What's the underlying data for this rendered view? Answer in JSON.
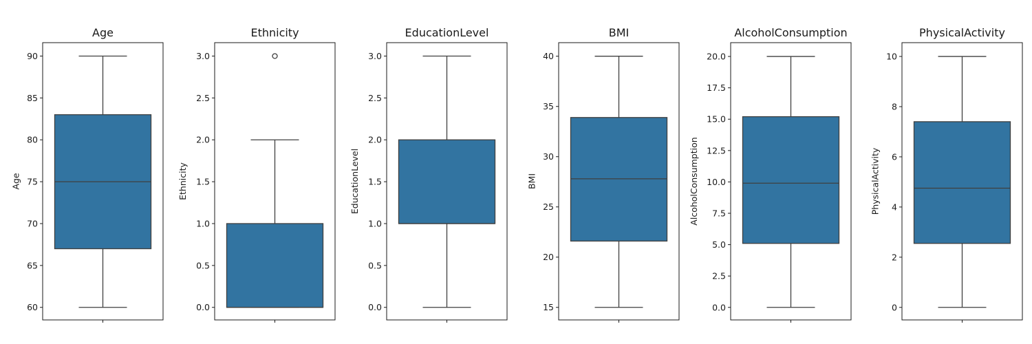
{
  "chart_data": [
    {
      "type": "box",
      "title": "Age",
      "ylabel": "Age",
      "ylim": [
        58.5,
        91.6
      ],
      "yticks": [
        60,
        65,
        70,
        75,
        80,
        85,
        90
      ],
      "ytick_labels": [
        "60",
        "65",
        "70",
        "75",
        "80",
        "85",
        "90"
      ],
      "stats": {
        "whisker_low": 60,
        "q1": 67,
        "median": 75,
        "q3": 83,
        "whisker_high": 90
      },
      "fliers": [],
      "color": "#3274a1"
    },
    {
      "type": "box",
      "title": "Ethnicity",
      "ylabel": "Ethnicity",
      "ylim": [
        -0.15,
        3.16
      ],
      "yticks": [
        0,
        0.5,
        1,
        1.5,
        2,
        2.5,
        3
      ],
      "ytick_labels": [
        "0.0",
        "0.5",
        "1.0",
        "1.5",
        "2.0",
        "2.5",
        "3.0"
      ],
      "stats": {
        "whisker_low": 0,
        "q1": 0,
        "median": 0,
        "q3": 1,
        "whisker_high": 2
      },
      "fliers": [
        3
      ],
      "color": "#3274a1"
    },
    {
      "type": "box",
      "title": "EducationLevel",
      "ylabel": "EducationLevel",
      "ylim": [
        -0.15,
        3.16
      ],
      "yticks": [
        0,
        0.5,
        1,
        1.5,
        2,
        2.5,
        3
      ],
      "ytick_labels": [
        "0.0",
        "0.5",
        "1.0",
        "1.5",
        "2.0",
        "2.5",
        "3.0"
      ],
      "stats": {
        "whisker_low": 0,
        "q1": 1,
        "median": 1,
        "q3": 2,
        "whisker_high": 3
      },
      "fliers": [],
      "color": "#3274a1"
    },
    {
      "type": "box",
      "title": "BMI",
      "ylabel": "BMI",
      "ylim": [
        13.75,
        41.35
      ],
      "yticks": [
        15,
        20,
        25,
        30,
        35,
        40
      ],
      "ytick_labels": [
        "15",
        "20",
        "25",
        "30",
        "35",
        "40"
      ],
      "stats": {
        "whisker_low": 15,
        "q1": 21.6,
        "median": 27.8,
        "q3": 33.9,
        "whisker_high": 40
      },
      "fliers": [],
      "color": "#3274a1"
    },
    {
      "type": "box",
      "title": "AlcoholConsumption",
      "ylabel": "AlcoholConsumption",
      "ylim": [
        -1.0,
        21.1
      ],
      "yticks": [
        0,
        2.5,
        5,
        7.5,
        10,
        12.5,
        15,
        17.5,
        20
      ],
      "ytick_labels": [
        "0.0",
        "2.5",
        "5.0",
        "7.5",
        "10.0",
        "12.5",
        "15.0",
        "17.5",
        "20.0"
      ],
      "stats": {
        "whisker_low": 0,
        "q1": 5.1,
        "median": 9.9,
        "q3": 15.2,
        "whisker_high": 20
      },
      "fliers": [],
      "color": "#3274a1"
    },
    {
      "type": "box",
      "title": "PhysicalActivity",
      "ylabel": "PhysicalActivity",
      "ylim": [
        -0.5,
        10.55
      ],
      "yticks": [
        0,
        2,
        4,
        6,
        8,
        10
      ],
      "ytick_labels": [
        "0",
        "2",
        "4",
        "6",
        "8",
        "10"
      ],
      "stats": {
        "whisker_low": 0,
        "q1": 2.55,
        "median": 4.75,
        "q3": 7.4,
        "whisker_high": 10
      },
      "fliers": [],
      "color": "#3274a1"
    }
  ]
}
